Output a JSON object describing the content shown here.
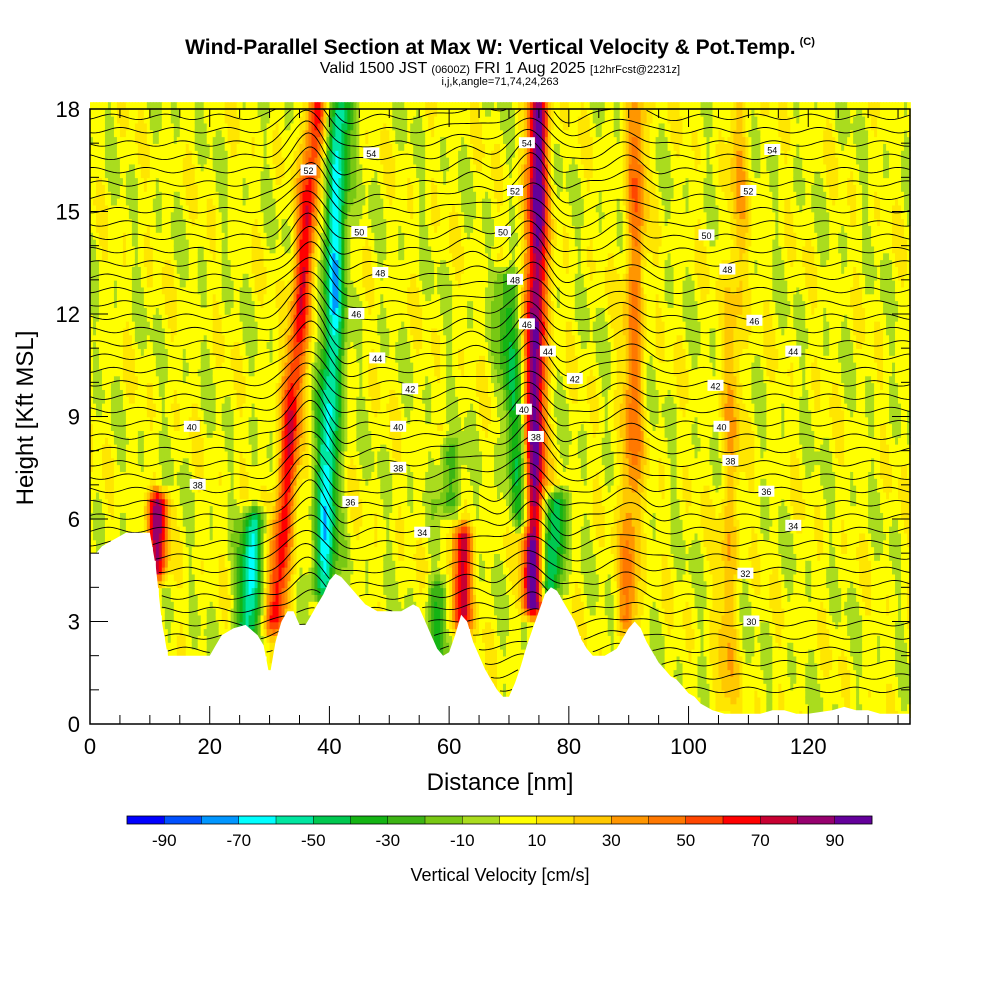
{
  "title": {
    "main": "Wind-Parallel Section at Max W: Vertical Velocity & Pot.Temp.",
    "mark": "(C)",
    "valid_prefix": "Valid 1500 JST",
    "valid_utc": "(0600Z)",
    "valid_date": "FRI 1 Aug 2025",
    "forecast": "[12hrFcst@2231z]",
    "params": "i,j,k,angle=71,74,24,263"
  },
  "chart_data": {
    "type": "heatmap",
    "xlabel": "Distance [nm]",
    "ylabel": "Height [Kft MSL]",
    "xlim": [
      0,
      137
    ],
    "ylim": [
      0,
      18
    ],
    "x_ticks": [
      "0",
      "20",
      "40",
      "60",
      "80",
      "100",
      "120"
    ],
    "x_tick_values": [
      0,
      20,
      40,
      60,
      80,
      100,
      120
    ],
    "y_ticks": [
      "0",
      "3",
      "6",
      "9",
      "12",
      "15",
      "18"
    ],
    "y_tick_values": [
      0,
      3,
      6,
      9,
      12,
      15,
      18
    ],
    "colorbar": {
      "label": "Vertical Velocity [cm/s]",
      "tick_labels": [
        "-90",
        "-70",
        "-50",
        "-30",
        "-10",
        "10",
        "30",
        "50",
        "70",
        "90"
      ],
      "bounds": [
        -100,
        -90,
        -80,
        -70,
        -60,
        -50,
        -40,
        -30,
        -20,
        -10,
        0,
        10,
        20,
        30,
        40,
        50,
        60,
        70,
        80,
        90,
        100
      ],
      "colors": [
        "#0000ff",
        "#0050ff",
        "#0096ff",
        "#00ffff",
        "#00e6a0",
        "#00c850",
        "#14b414",
        "#3cb414",
        "#78c814",
        "#aadc1e",
        "#ffff00",
        "#ffe600",
        "#ffc800",
        "#ff9600",
        "#ff7800",
        "#ff4600",
        "#ff0000",
        "#c80032",
        "#96006e",
        "#64009b"
      ]
    },
    "terrain": [
      [
        0,
        5
      ],
      [
        1,
        5
      ],
      [
        2,
        5.2
      ],
      [
        3,
        5.3
      ],
      [
        4,
        5.4
      ],
      [
        5,
        5.5
      ],
      [
        6,
        5.6
      ],
      [
        7,
        5.6
      ],
      [
        8,
        5.6
      ],
      [
        9,
        5.6
      ],
      [
        10,
        5.6
      ],
      [
        11,
        4.6
      ],
      [
        12,
        3
      ],
      [
        13,
        2
      ],
      [
        14,
        2
      ],
      [
        16,
        2
      ],
      [
        18,
        2
      ],
      [
        20,
        2
      ],
      [
        21,
        2.3
      ],
      [
        22,
        2.6
      ],
      [
        24,
        2.8
      ],
      [
        26,
        2.9
      ],
      [
        28,
        2.6
      ],
      [
        29,
        2.3
      ],
      [
        30,
        1.4
      ],
      [
        31,
        2.4
      ],
      [
        32,
        3
      ],
      [
        33,
        3.3
      ],
      [
        34,
        3.3
      ],
      [
        35,
        2.9
      ],
      [
        36,
        2.9
      ],
      [
        37,
        3.2
      ],
      [
        38,
        3.5
      ],
      [
        39,
        3.8
      ],
      [
        40,
        4.2
      ],
      [
        41,
        4.4
      ],
      [
        42,
        4.3
      ],
      [
        43,
        4.1
      ],
      [
        44,
        3.9
      ],
      [
        45,
        3.7
      ],
      [
        46,
        3.5
      ],
      [
        47,
        3.4
      ],
      [
        48,
        3.3
      ],
      [
        50,
        3.3
      ],
      [
        52,
        3.3
      ],
      [
        54,
        3.5
      ],
      [
        55,
        3.4
      ],
      [
        56,
        3
      ],
      [
        57,
        2.6
      ],
      [
        58,
        2.2
      ],
      [
        59,
        2
      ],
      [
        60,
        2.1
      ],
      [
        61,
        2.6
      ],
      [
        62,
        3.2
      ],
      [
        63,
        3
      ],
      [
        64,
        2.4
      ],
      [
        65,
        2
      ],
      [
        66,
        1.6
      ],
      [
        67,
        1.3
      ],
      [
        68,
        1
      ],
      [
        69,
        0.8
      ],
      [
        70,
        0.8
      ],
      [
        71,
        1.2
      ],
      [
        72,
        1.7
      ],
      [
        73,
        2.3
      ],
      [
        74,
        2.8
      ],
      [
        75,
        3.3
      ],
      [
        76,
        3.8
      ],
      [
        77,
        4
      ],
      [
        78,
        3.9
      ],
      [
        79,
        3.6
      ],
      [
        80,
        3.3
      ],
      [
        81,
        3
      ],
      [
        82,
        2.5
      ],
      [
        83,
        2.2
      ],
      [
        84,
        2
      ],
      [
        86,
        2
      ],
      [
        88,
        2.2
      ],
      [
        89,
        2.5
      ],
      [
        90,
        2.8
      ],
      [
        91,
        3
      ],
      [
        92,
        2.8
      ],
      [
        93,
        2.4
      ],
      [
        94,
        2.1
      ],
      [
        95,
        1.8
      ],
      [
        96,
        1.6
      ],
      [
        97,
        1.4
      ],
      [
        98,
        1.3
      ],
      [
        99,
        1.1
      ],
      [
        100,
        0.9
      ],
      [
        101,
        0.8
      ],
      [
        102,
        0.6
      ],
      [
        104,
        0.4
      ],
      [
        106,
        0.3
      ],
      [
        108,
        0.3
      ],
      [
        110,
        0.3
      ],
      [
        112,
        0.3
      ],
      [
        114,
        0.4
      ],
      [
        116,
        0.4
      ],
      [
        118,
        0.3
      ],
      [
        120,
        0.3
      ],
      [
        124,
        0.4
      ],
      [
        126,
        0.5
      ],
      [
        128,
        0.4
      ],
      [
        130,
        0.4
      ],
      [
        132,
        0.3
      ],
      [
        134,
        0.3
      ],
      [
        137,
        0.3
      ]
    ],
    "updrafts": [
      {
        "x_base": 11,
        "z_base": 4.5,
        "z_top": 6.5,
        "lean_nm_per_kft": 0.2,
        "peak": 72
      },
      {
        "x_base": 31,
        "z_base": 3,
        "z_top": 18,
        "lean_nm_per_kft": 0.45,
        "peak": 62
      },
      {
        "x_base": 62,
        "z_base": 3,
        "z_top": 5.5,
        "lean_nm_per_kft": 0.1,
        "peak": 68
      },
      {
        "x_base": 74,
        "z_base": 3.5,
        "z_top": 18,
        "lean_nm_per_kft": 0.06,
        "peak": 92
      },
      {
        "x_base": 90,
        "z_base": 3,
        "z_top": 18,
        "lean_nm_per_kft": 0.1,
        "peak": 38
      },
      {
        "x_base": 106,
        "z_base": 0.5,
        "z_top": 18,
        "lean_nm_per_kft": 0.15,
        "peak": 22
      }
    ],
    "downdrafts": [
      {
        "x_base": 26,
        "z_base": 2.5,
        "z_top": 6,
        "lean_nm_per_kft": 0.4,
        "peak": -62
      },
      {
        "x_base": 39,
        "z_base": 4,
        "z_top": 18,
        "lean_nm_per_kft": 0.2,
        "peak": -68
      },
      {
        "x_base": 58,
        "z_base": 2,
        "z_top": 4,
        "lean_nm_per_kft": 0.1,
        "peak": -35
      },
      {
        "x_base": 77,
        "z_base": 4,
        "z_top": 6.5,
        "lean_nm_per_kft": 0.3,
        "peak": -58
      },
      {
        "x_base": 72,
        "z_base": 6,
        "z_top": 13,
        "lean_nm_per_kft": -0.35,
        "peak": -42
      },
      {
        "x_base": 60,
        "z_base": 6.5,
        "z_top": 8,
        "lean_nm_per_kft": 0,
        "peak": -32
      }
    ],
    "contour_labels": [
      {
        "text": "54",
        "x": 47,
        "z": 16.7
      },
      {
        "text": "54",
        "x": 73,
        "z": 17
      },
      {
        "text": "54",
        "x": 114,
        "z": 16.8
      },
      {
        "text": "52",
        "x": 36.5,
        "z": 16.2
      },
      {
        "text": "52",
        "x": 71,
        "z": 15.6
      },
      {
        "text": "52",
        "x": 110,
        "z": 15.6
      },
      {
        "text": "50",
        "x": 45,
        "z": 14.4
      },
      {
        "text": "50",
        "x": 69,
        "z": 14.4
      },
      {
        "text": "50",
        "x": 103,
        "z": 14.3
      },
      {
        "text": "48",
        "x": 48.5,
        "z": 13.2
      },
      {
        "text": "48",
        "x": 71,
        "z": 13
      },
      {
        "text": "48",
        "x": 106.5,
        "z": 13.3
      },
      {
        "text": "46",
        "x": 44.5,
        "z": 12
      },
      {
        "text": "46",
        "x": 73,
        "z": 11.7
      },
      {
        "text": "46",
        "x": 111,
        "z": 11.8
      },
      {
        "text": "44",
        "x": 48,
        "z": 10.7
      },
      {
        "text": "44",
        "x": 76.5,
        "z": 10.9
      },
      {
        "text": "44",
        "x": 117.5,
        "z": 10.9
      },
      {
        "text": "42",
        "x": 53.5,
        "z": 9.8
      },
      {
        "text": "42",
        "x": 81,
        "z": 10.1
      },
      {
        "text": "42",
        "x": 104.5,
        "z": 9.9
      },
      {
        "text": "40",
        "x": 17,
        "z": 8.7
      },
      {
        "text": "40",
        "x": 51.5,
        "z": 8.7
      },
      {
        "text": "40",
        "x": 72.5,
        "z": 9.2
      },
      {
        "text": "40",
        "x": 105.5,
        "z": 8.7
      },
      {
        "text": "38",
        "x": 18,
        "z": 7
      },
      {
        "text": "38",
        "x": 51.5,
        "z": 7.5
      },
      {
        "text": "38",
        "x": 74.5,
        "z": 8.4
      },
      {
        "text": "38",
        "x": 107,
        "z": 7.7
      },
      {
        "text": "36",
        "x": 43.5,
        "z": 6.5
      },
      {
        "text": "36",
        "x": 113,
        "z": 6.8
      },
      {
        "text": "34",
        "x": 55.5,
        "z": 5.6
      },
      {
        "text": "34",
        "x": 117.5,
        "z": 5.8
      },
      {
        "text": "32",
        "x": 109.5,
        "z": 4.4
      },
      {
        "text": "30",
        "x": 110.5,
        "z": 3
      }
    ]
  }
}
